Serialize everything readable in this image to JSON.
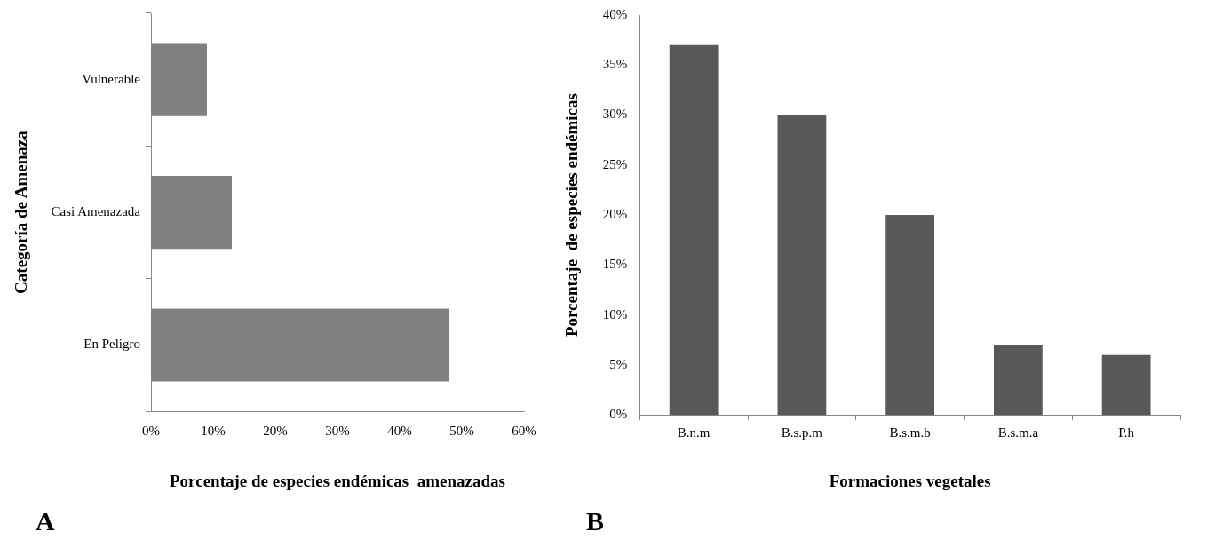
{
  "chart_data": [
    {
      "type": "bar",
      "orientation": "horizontal",
      "categories": [
        "Vulnerable",
        "Casi Amenazada",
        "En Peligro"
      ],
      "values": [
        9,
        13,
        48
      ],
      "color": "#808080",
      "xlim": [
        0,
        60
      ],
      "xticks": [
        {
          "value": 0,
          "label": "0%"
        },
        {
          "value": 10,
          "label": "10%"
        },
        {
          "value": 20,
          "label": "20%"
        },
        {
          "value": 30,
          "label": "30%"
        },
        {
          "value": 40,
          "label": "40%"
        },
        {
          "value": 50,
          "label": "50%"
        },
        {
          "value": 60,
          "label": "60%"
        }
      ],
      "xlabel": "Porcentaje de especies endémicas  amenazadas",
      "ylabel": "Categoría de Amenaza",
      "grid": false,
      "legend": false,
      "annotations": [
        "A"
      ]
    },
    {
      "type": "bar",
      "categories": [
        "B.n.m",
        "B.s.p.m",
        "B.s.m.b",
        "B.s.m.a",
        "P.h"
      ],
      "values": [
        37,
        30,
        20,
        7,
        6
      ],
      "color": "#595959",
      "ylim": [
        0,
        40
      ],
      "yticks": [
        {
          "value": 0,
          "label": "0%"
        },
        {
          "value": 5,
          "label": "5%"
        },
        {
          "value": 10,
          "label": "10%"
        },
        {
          "value": 15,
          "label": "15%"
        },
        {
          "value": 20,
          "label": "20%"
        },
        {
          "value": 25,
          "label": "25%"
        },
        {
          "value": 30,
          "label": "30%"
        },
        {
          "value": 35,
          "label": "35%"
        },
        {
          "value": 40,
          "label": "40%"
        }
      ],
      "xlabel": "Formaciones vegetales",
      "ylabel": "Porcentaje  de especies endémicas",
      "grid": false,
      "legend": false,
      "annotations": [
        "B"
      ]
    }
  ]
}
